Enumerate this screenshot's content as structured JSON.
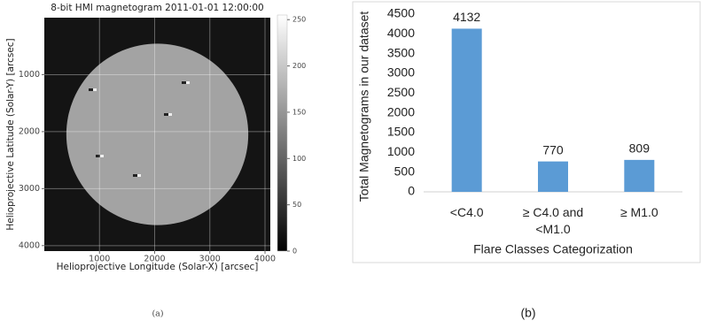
{
  "chart_data": [
    {
      "type": "image",
      "title": "8-bit HMI magnetogram 2011-01-01 12:00:00",
      "xlabel": "Helioprojective Longitude (Solar-X) [arcsec]",
      "ylabel": "Helioprojective Latitude (Solar-Y) [arcsec]",
      "xlim": [
        0,
        4096
      ],
      "ylim": [
        4096,
        0
      ],
      "xticks": [
        1000,
        2000,
        3000,
        4000
      ],
      "yticks": [
        1000,
        2000,
        3000,
        4000
      ],
      "grid": true,
      "clim": [
        0,
        255
      ],
      "cticks": [
        0,
        50,
        100,
        150,
        200,
        250
      ],
      "caption": "(a)"
    },
    {
      "type": "bar",
      "categories": [
        "<C4.0",
        "≥ C4.0 and <M1.0",
        "≥ M1.0"
      ],
      "values": [
        4132,
        770,
        809
      ],
      "color": "#5b9bd5",
      "ylim": [
        0,
        4500
      ],
      "yticks": [
        0,
        500,
        1000,
        1500,
        2000,
        2500,
        3000,
        3500,
        4000,
        4500
      ],
      "xlabel": "Flare Classes Categorization",
      "ylabel": "Total Magnetograms in our dataset",
      "grid": false,
      "caption": "(b)"
    }
  ]
}
